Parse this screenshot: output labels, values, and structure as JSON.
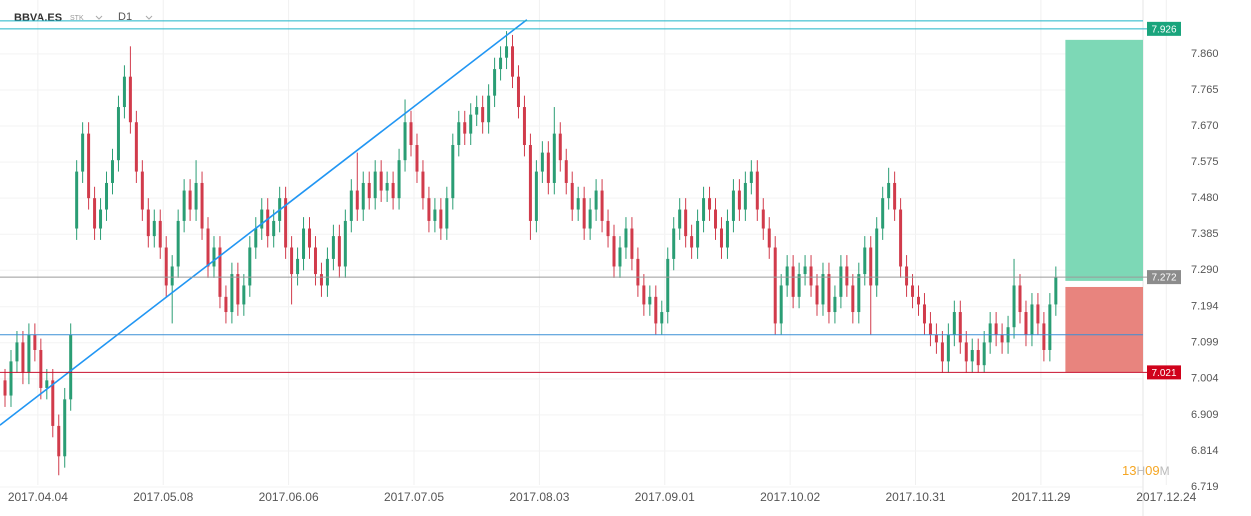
{
  "chart_data": {
    "type": "candlestick",
    "symbol": "BBVA.ES",
    "instrument_type": "STK",
    "timeframe": "D1",
    "up_color": "#2a9d74",
    "down_color": "#d13b4b",
    "grid": true,
    "xlim": [
      -0.84,
      190.6
    ],
    "ylim": [
      6.698,
      8.002
    ],
    "xticks": [
      {
        "value": 5.5,
        "label": "2017.04.04"
      },
      {
        "value": 26.5,
        "label": "2017.05.08"
      },
      {
        "value": 47.5,
        "label": "2017.06.06"
      },
      {
        "value": 68.5,
        "label": "2017.07.05"
      },
      {
        "value": 89.5,
        "label": "2017.08.03"
      },
      {
        "value": 110.5,
        "label": "2017.09.01"
      },
      {
        "value": 131.5,
        "label": "2017.10.02"
      },
      {
        "value": 152.5,
        "label": "2017.10.31"
      },
      {
        "value": 173.5,
        "label": "2017.11.29"
      },
      {
        "value": 194.5,
        "label": "2017.12.24"
      }
    ],
    "yticks": [
      {
        "value": 7.86,
        "label": "7.860"
      },
      7.765,
      {
        "value": 7.67,
        "label": "7.670"
      },
      7.575,
      {
        "value": 7.48,
        "label": "7.480"
      },
      7.385,
      {
        "value": 7.29,
        "label": "7.290"
      },
      7.194,
      7.099,
      7.004,
      6.909,
      6.814,
      6.719
    ],
    "open": [
      7.0,
      6.96,
      7.05,
      7.1,
      7.02,
      7.12,
      7.08,
      6.98,
      7.0,
      6.88,
      6.8,
      6.95,
      7.4,
      7.55,
      7.65,
      7.48,
      7.4,
      7.45,
      7.52,
      7.58,
      7.72,
      7.8,
      7.68,
      7.55,
      7.45,
      7.38,
      7.42,
      7.35,
      7.25,
      7.3,
      7.42,
      7.5,
      7.45,
      7.52,
      7.4,
      7.3,
      7.35,
      7.22,
      7.18,
      7.28,
      7.2,
      7.25,
      7.35,
      7.4,
      7.45,
      7.38,
      7.42,
      7.48,
      7.35,
      7.28,
      7.32,
      7.4,
      7.35,
      7.28,
      7.25,
      7.32,
      7.38,
      7.3,
      7.42,
      7.5,
      7.45,
      7.52,
      7.48,
      7.55,
      7.5,
      7.52,
      7.48,
      7.58,
      7.68,
      7.62,
      7.55,
      7.48,
      7.42,
      7.45,
      7.4,
      7.48,
      7.62,
      7.68,
      7.65,
      7.7,
      7.72,
      7.68,
      7.75,
      7.82,
      7.85,
      7.88,
      7.8,
      7.72,
      7.62,
      7.42,
      7.55,
      7.6,
      7.52,
      7.65,
      7.58,
      7.52,
      7.45,
      7.48,
      7.4,
      7.45,
      7.5,
      7.42,
      7.38,
      7.3,
      7.35,
      7.4,
      7.32,
      7.25,
      7.2,
      7.22,
      7.15,
      7.18,
      7.32,
      7.4,
      7.45,
      7.38,
      7.35,
      7.42,
      7.48,
      7.45,
      7.4,
      7.35,
      7.42,
      7.5,
      7.45,
      7.52,
      7.55,
      7.45,
      7.4,
      7.35,
      7.15,
      7.25,
      7.3,
      7.22,
      7.28,
      7.3,
      7.25,
      7.2,
      7.28,
      7.18,
      7.22,
      7.3,
      7.25,
      7.18,
      7.28,
      7.35,
      7.25,
      7.4,
      7.48,
      7.52,
      7.45,
      7.3,
      7.25,
      7.22,
      7.2,
      7.15,
      7.12,
      7.1,
      7.05,
      7.12,
      7.18,
      7.1,
      7.05,
      7.08,
      7.04,
      7.1,
      7.15,
      7.12,
      7.1,
      7.14,
      7.25,
      7.18,
      7.12,
      7.2,
      7.15,
      7.08,
      7.2
    ],
    "high": [
      7.03,
      7.08,
      7.13,
      7.13,
      7.15,
      7.15,
      7.11,
      7.03,
      7.03,
      6.91,
      6.98,
      7.15,
      7.58,
      7.68,
      7.68,
      7.51,
      7.48,
      7.55,
      7.61,
      7.75,
      7.83,
      7.88,
      7.71,
      7.58,
      7.48,
      7.45,
      7.45,
      7.38,
      7.33,
      7.45,
      7.53,
      7.53,
      7.58,
      7.55,
      7.43,
      7.38,
      7.38,
      7.25,
      7.31,
      7.31,
      7.28,
      7.38,
      7.43,
      7.48,
      7.48,
      7.45,
      7.51,
      7.51,
      7.38,
      7.35,
      7.43,
      7.43,
      7.38,
      7.31,
      7.35,
      7.41,
      7.41,
      7.45,
      7.53,
      7.6,
      7.55,
      7.55,
      7.58,
      7.58,
      7.55,
      7.55,
      7.61,
      7.74,
      7.71,
      7.65,
      7.58,
      7.51,
      7.48,
      7.48,
      7.51,
      7.65,
      7.71,
      7.71,
      7.73,
      7.75,
      7.75,
      7.78,
      7.85,
      7.88,
      7.92,
      7.91,
      7.83,
      7.75,
      7.65,
      7.58,
      7.63,
      7.63,
      7.72,
      7.68,
      7.61,
      7.55,
      7.51,
      7.51,
      7.48,
      7.53,
      7.53,
      7.45,
      7.41,
      7.38,
      7.43,
      7.43,
      7.35,
      7.28,
      7.25,
      7.25,
      7.21,
      7.35,
      7.43,
      7.48,
      7.48,
      7.41,
      7.45,
      7.51,
      7.51,
      7.48,
      7.43,
      7.45,
      7.53,
      7.53,
      7.55,
      7.58,
      7.58,
      7.48,
      7.43,
      7.38,
      7.28,
      7.33,
      7.33,
      7.31,
      7.33,
      7.33,
      7.28,
      7.31,
      7.31,
      7.25,
      7.33,
      7.33,
      7.28,
      7.31,
      7.38,
      7.38,
      7.43,
      7.51,
      7.56,
      7.55,
      7.48,
      7.33,
      7.28,
      7.25,
      7.23,
      7.18,
      7.15,
      7.13,
      7.15,
      7.21,
      7.21,
      7.13,
      7.11,
      7.11,
      7.13,
      7.18,
      7.18,
      7.15,
      7.17,
      7.32,
      7.28,
      7.21,
      7.23,
      7.23,
      7.18,
      7.23,
      7.3
    ],
    "low": [
      6.93,
      6.93,
      7.02,
      6.99,
      6.99,
      7.05,
      6.95,
      6.95,
      6.85,
      6.75,
      6.77,
      6.92,
      7.37,
      7.52,
      7.45,
      7.37,
      7.37,
      7.42,
      7.49,
      7.55,
      7.69,
      7.65,
      7.52,
      7.42,
      7.35,
      7.35,
      7.32,
      7.22,
      7.15,
      7.27,
      7.39,
      7.42,
      7.42,
      7.37,
      7.27,
      7.27,
      7.19,
      7.15,
      7.15,
      7.17,
      7.17,
      7.22,
      7.32,
      7.37,
      7.35,
      7.35,
      7.39,
      7.32,
      7.2,
      7.25,
      7.29,
      7.32,
      7.25,
      7.22,
      7.22,
      7.29,
      7.27,
      7.27,
      7.39,
      7.42,
      7.42,
      7.45,
      7.45,
      7.47,
      7.47,
      7.45,
      7.45,
      7.55,
      7.59,
      7.52,
      7.45,
      7.39,
      7.39,
      7.37,
      7.37,
      7.45,
      7.59,
      7.62,
      7.62,
      7.67,
      7.65,
      7.65,
      7.72,
      7.79,
      7.82,
      7.77,
      7.69,
      7.59,
      7.37,
      7.39,
      7.52,
      7.49,
      7.49,
      7.55,
      7.49,
      7.42,
      7.42,
      7.37,
      7.37,
      7.42,
      7.39,
      7.35,
      7.27,
      7.27,
      7.32,
      7.29,
      7.22,
      7.17,
      7.17,
      7.12,
      7.12,
      7.15,
      7.29,
      7.37,
      7.35,
      7.32,
      7.32,
      7.39,
      7.42,
      7.37,
      7.32,
      7.32,
      7.39,
      7.42,
      7.42,
      7.49,
      7.42,
      7.37,
      7.32,
      7.12,
      7.12,
      7.22,
      7.19,
      7.19,
      7.25,
      7.22,
      7.17,
      7.17,
      7.15,
      7.15,
      7.19,
      7.22,
      7.15,
      7.15,
      7.25,
      7.12,
      7.22,
      7.37,
      7.45,
      7.42,
      7.27,
      7.22,
      7.19,
      7.17,
      7.12,
      7.09,
      7.07,
      7.02,
      7.02,
      7.09,
      7.07,
      7.02,
      7.02,
      7.02,
      7.02,
      7.07,
      7.09,
      7.07,
      7.07,
      7.11,
      7.15,
      7.09,
      7.09,
      7.12,
      7.05,
      7.05,
      7.17
    ],
    "close": [
      6.96,
      7.05,
      7.1,
      7.02,
      7.12,
      7.08,
      6.98,
      7.0,
      6.88,
      6.8,
      6.95,
      7.12,
      7.55,
      7.65,
      7.48,
      7.4,
      7.45,
      7.52,
      7.58,
      7.72,
      7.8,
      7.68,
      7.55,
      7.45,
      7.38,
      7.42,
      7.35,
      7.25,
      7.3,
      7.42,
      7.5,
      7.45,
      7.52,
      7.4,
      7.3,
      7.35,
      7.22,
      7.18,
      7.28,
      7.2,
      7.25,
      7.35,
      7.4,
      7.45,
      7.38,
      7.42,
      7.48,
      7.35,
      7.28,
      7.32,
      7.4,
      7.35,
      7.28,
      7.25,
      7.32,
      7.38,
      7.3,
      7.42,
      7.5,
      7.45,
      7.52,
      7.48,
      7.55,
      7.5,
      7.52,
      7.48,
      7.58,
      7.68,
      7.62,
      7.55,
      7.48,
      7.42,
      7.45,
      7.4,
      7.48,
      7.62,
      7.68,
      7.65,
      7.7,
      7.72,
      7.68,
      7.75,
      7.82,
      7.85,
      7.88,
      7.8,
      7.72,
      7.62,
      7.42,
      7.55,
      7.6,
      7.52,
      7.65,
      7.58,
      7.52,
      7.45,
      7.48,
      7.4,
      7.45,
      7.5,
      7.42,
      7.38,
      7.3,
      7.35,
      7.4,
      7.32,
      7.25,
      7.2,
      7.22,
      7.15,
      7.18,
      7.32,
      7.4,
      7.45,
      7.38,
      7.35,
      7.42,
      7.48,
      7.45,
      7.4,
      7.35,
      7.42,
      7.5,
      7.45,
      7.52,
      7.55,
      7.45,
      7.4,
      7.35,
      7.15,
      7.25,
      7.3,
      7.22,
      7.28,
      7.3,
      7.25,
      7.2,
      7.28,
      7.18,
      7.22,
      7.3,
      7.25,
      7.18,
      7.28,
      7.35,
      7.25,
      7.4,
      7.48,
      7.52,
      7.45,
      7.3,
      7.25,
      7.22,
      7.2,
      7.15,
      7.12,
      7.1,
      7.05,
      7.12,
      7.18,
      7.1,
      7.05,
      7.08,
      7.04,
      7.1,
      7.15,
      7.12,
      7.1,
      7.14,
      7.25,
      7.18,
      7.12,
      7.2,
      7.15,
      7.08,
      7.2,
      7.272
    ],
    "levels": [
      {
        "value": 7.947,
        "color": "#1fb5c8"
      },
      {
        "value": 7.926,
        "color": "#1fb5c8",
        "tag_color": "#19a47c"
      },
      {
        "value": 7.272,
        "color": "#9a9a9a",
        "tag_color": "#8c8c8c"
      },
      {
        "value": 7.12,
        "color": "#3a8fd6"
      },
      {
        "value": 7.021,
        "color": "#c8102e",
        "tag_color": "#d0021b"
      }
    ],
    "zones": [
      {
        "x_from": 177.6,
        "top": 7.897,
        "bottom": 7.262,
        "color": "#7dd8b6"
      },
      {
        "x_from": 177.6,
        "top": 7.246,
        "bottom": 7.021,
        "color": "#e8847e"
      }
    ],
    "trendline": {
      "x": [
        -0.84,
        87.4
      ],
      "y": [
        6.882,
        7.95
      ],
      "color": "#2196f3"
    },
    "countdown": [
      "13",
      "H",
      "09",
      "M"
    ]
  }
}
